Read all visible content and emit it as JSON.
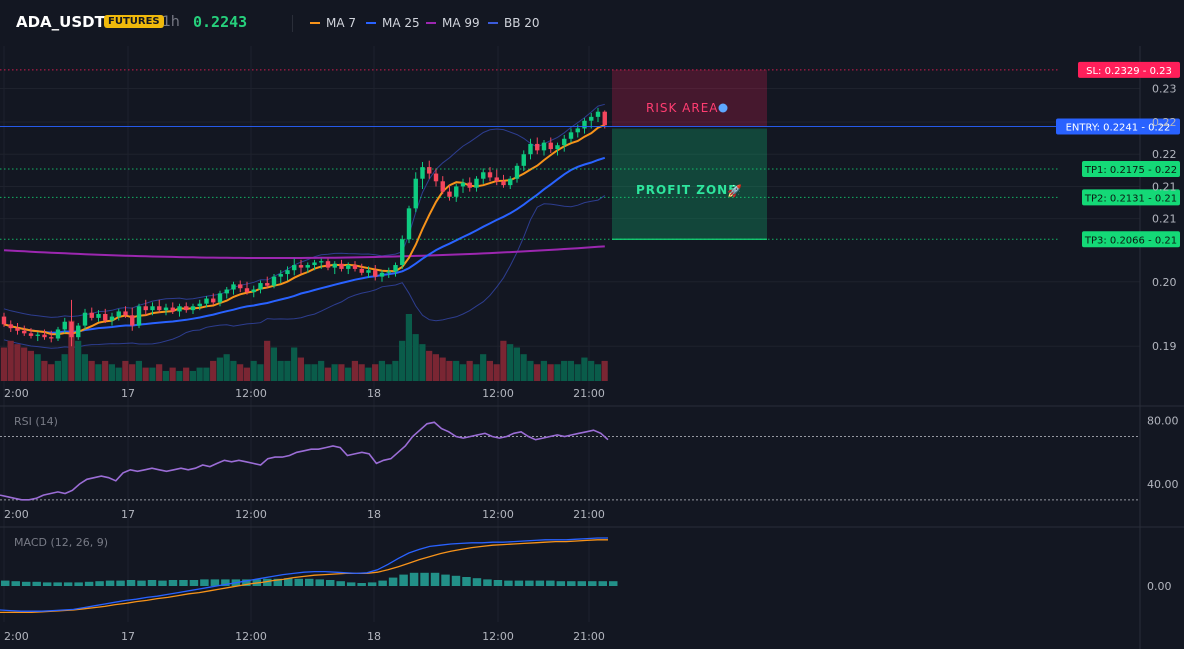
{
  "header": {
    "symbol": "ADA_USDT",
    "badge": "FUTURES",
    "timeframe": "1h",
    "price": "0.2243",
    "legend": [
      {
        "label": "MA 7",
        "color": "#f7931a"
      },
      {
        "label": "MA 25",
        "color": "#2962ff"
      },
      {
        "label": "MA 99",
        "color": "#9c27b0"
      },
      {
        "label": "BB 20",
        "color": "#3b5bdb"
      }
    ]
  },
  "colors": {
    "up": "#0ecb81",
    "down": "#f6465d",
    "risk": "#ff1f5a",
    "profit": "#14d977",
    "entry": "#2962ff"
  },
  "chart_data": [
    {
      "type": "candlestick",
      "ylim": [
        0.1846,
        0.2366
      ],
      "x_ticks": [
        "2:00",
        "17",
        "12:00",
        "18",
        "12:00",
        "21:00"
      ],
      "y_ticks": [
        "0.23",
        "0.22",
        "0.22",
        "0.21",
        "0.21",
        "0.20",
        "0.19"
      ],
      "y_tick_values": [
        0.23,
        0.2248,
        0.2198,
        0.2148,
        0.2098,
        0.2,
        0.19
      ],
      "ohlc": [
        [
          0.1946,
          0.1952,
          0.193,
          0.1934
        ],
        [
          0.1934,
          0.194,
          0.1922,
          0.1928
        ],
        [
          0.1928,
          0.1936,
          0.1918,
          0.1924
        ],
        [
          0.1924,
          0.1932,
          0.1916,
          0.192
        ],
        [
          0.192,
          0.1928,
          0.1912,
          0.1916
        ],
        [
          0.1916,
          0.1922,
          0.1908,
          0.1918
        ],
        [
          0.1918,
          0.1926,
          0.191,
          0.1914
        ],
        [
          0.1914,
          0.1924,
          0.1906,
          0.1912
        ],
        [
          0.1912,
          0.193,
          0.1908,
          0.1926
        ],
        [
          0.1926,
          0.1944,
          0.192,
          0.1938
        ],
        [
          0.1938,
          0.1972,
          0.19,
          0.1914
        ],
        [
          0.1914,
          0.1936,
          0.191,
          0.1932
        ],
        [
          0.1932,
          0.1958,
          0.1926,
          0.1952
        ],
        [
          0.1952,
          0.196,
          0.194,
          0.1944
        ],
        [
          0.1944,
          0.1956,
          0.1938,
          0.195
        ],
        [
          0.195,
          0.1958,
          0.1936,
          0.194
        ],
        [
          0.194,
          0.1952,
          0.1932,
          0.1946
        ],
        [
          0.1946,
          0.1958,
          0.194,
          0.1954
        ],
        [
          0.1954,
          0.1962,
          0.1944,
          0.1948
        ],
        [
          0.1948,
          0.196,
          0.1924,
          0.1932
        ],
        [
          0.1932,
          0.1966,
          0.1928,
          0.1962
        ],
        [
          0.1962,
          0.1972,
          0.1948,
          0.1956
        ],
        [
          0.1956,
          0.1968,
          0.1948,
          0.1962
        ],
        [
          0.1962,
          0.1972,
          0.1952,
          0.1956
        ],
        [
          0.1956,
          0.1966,
          0.1948,
          0.196
        ],
        [
          0.196,
          0.1968,
          0.195,
          0.1954
        ],
        [
          0.1954,
          0.1966,
          0.1946,
          0.1962
        ],
        [
          0.1962,
          0.1968,
          0.1952,
          0.1956
        ],
        [
          0.1956,
          0.1966,
          0.195,
          0.1962
        ],
        [
          0.1962,
          0.1972,
          0.1956,
          0.1966
        ],
        [
          0.1966,
          0.1978,
          0.196,
          0.1974
        ],
        [
          0.1974,
          0.1982,
          0.1964,
          0.1968
        ],
        [
          0.1968,
          0.1986,
          0.1962,
          0.1982
        ],
        [
          0.1982,
          0.1992,
          0.1974,
          0.1988
        ],
        [
          0.1988,
          0.2,
          0.198,
          0.1996
        ],
        [
          0.1996,
          0.2002,
          0.1984,
          0.199
        ],
        [
          0.199,
          0.2,
          0.198,
          0.1984
        ],
        [
          0.1984,
          0.1994,
          0.1976,
          0.1988
        ],
        [
          0.1988,
          0.2002,
          0.1982,
          0.1998
        ],
        [
          0.1998,
          0.2008,
          0.199,
          0.1994
        ],
        [
          0.1994,
          0.2012,
          0.199,
          0.2008
        ],
        [
          0.2008,
          0.2018,
          0.1998,
          0.2012
        ],
        [
          0.2012,
          0.2024,
          0.2002,
          0.2018
        ],
        [
          0.2018,
          0.2036,
          0.201,
          0.2026
        ],
        [
          0.2026,
          0.2034,
          0.2012,
          0.2022
        ],
        [
          0.2022,
          0.203,
          0.2014,
          0.2026
        ],
        [
          0.2026,
          0.2034,
          0.2018,
          0.203
        ],
        [
          0.203,
          0.2036,
          0.202,
          0.2032
        ],
        [
          0.2032,
          0.2036,
          0.2018,
          0.2022
        ],
        [
          0.2022,
          0.2032,
          0.2012,
          0.2028
        ],
        [
          0.2028,
          0.2034,
          0.2016,
          0.202
        ],
        [
          0.202,
          0.203,
          0.2012,
          0.2026
        ],
        [
          0.2026,
          0.2032,
          0.2016,
          0.202
        ],
        [
          0.202,
          0.2028,
          0.201,
          0.2014
        ],
        [
          0.2014,
          0.2024,
          0.2006,
          0.2018
        ],
        [
          0.2018,
          0.2026,
          0.2002,
          0.2008
        ],
        [
          0.2008,
          0.2018,
          0.2,
          0.2014
        ],
        [
          0.2014,
          0.2022,
          0.2006,
          0.2016
        ],
        [
          0.2016,
          0.203,
          0.2008,
          0.2026
        ],
        [
          0.2026,
          0.2072,
          0.202,
          0.2066
        ],
        [
          0.2066,
          0.2118,
          0.206,
          0.2114
        ],
        [
          0.2114,
          0.217,
          0.2108,
          0.216
        ],
        [
          0.216,
          0.2186,
          0.2144,
          0.2178
        ],
        [
          0.2178,
          0.2188,
          0.216,
          0.2168
        ],
        [
          0.2168,
          0.2176,
          0.2148,
          0.2156
        ],
        [
          0.2156,
          0.2164,
          0.2136,
          0.214
        ],
        [
          0.214,
          0.215,
          0.2126,
          0.2132
        ],
        [
          0.2132,
          0.2152,
          0.2124,
          0.2148
        ],
        [
          0.2148,
          0.216,
          0.2138,
          0.2154
        ],
        [
          0.2154,
          0.2162,
          0.214,
          0.2146
        ],
        [
          0.2146,
          0.2164,
          0.214,
          0.216
        ],
        [
          0.216,
          0.2176,
          0.2152,
          0.217
        ],
        [
          0.217,
          0.2178,
          0.2156,
          0.2162
        ],
        [
          0.2162,
          0.2174,
          0.215,
          0.2156
        ],
        [
          0.2156,
          0.2166,
          0.2146,
          0.215
        ],
        [
          0.215,
          0.2164,
          0.2144,
          0.216
        ],
        [
          0.216,
          0.2184,
          0.2154,
          0.218
        ],
        [
          0.218,
          0.2204,
          0.2172,
          0.2198
        ],
        [
          0.2198,
          0.2222,
          0.219,
          0.2214
        ],
        [
          0.2214,
          0.2224,
          0.2198,
          0.2204
        ],
        [
          0.2204,
          0.222,
          0.2196,
          0.2216
        ],
        [
          0.2216,
          0.2224,
          0.22,
          0.2206
        ],
        [
          0.2206,
          0.2216,
          0.2196,
          0.2212
        ],
        [
          0.2212,
          0.2228,
          0.2202,
          0.2222
        ],
        [
          0.2222,
          0.2238,
          0.2216,
          0.2232
        ],
        [
          0.2232,
          0.2244,
          0.2224,
          0.2238
        ],
        [
          0.2238,
          0.2254,
          0.223,
          0.225
        ],
        [
          0.225,
          0.2262,
          0.2238,
          0.2256
        ],
        [
          0.2256,
          0.227,
          0.2248,
          0.2264
        ],
        [
          0.2264,
          0.2266,
          0.2238,
          0.2243
        ]
      ],
      "volume": [
        0.5,
        0.6,
        0.55,
        0.5,
        0.45,
        0.4,
        0.3,
        0.25,
        0.3,
        0.4,
        0.9,
        0.6,
        0.4,
        0.3,
        0.25,
        0.3,
        0.25,
        0.2,
        0.3,
        0.25,
        0.3,
        0.2,
        0.2,
        0.25,
        0.15,
        0.2,
        0.15,
        0.2,
        0.15,
        0.2,
        0.2,
        0.3,
        0.35,
        0.4,
        0.3,
        0.25,
        0.2,
        0.3,
        0.25,
        0.6,
        0.5,
        0.3,
        0.3,
        0.5,
        0.35,
        0.25,
        0.25,
        0.3,
        0.2,
        0.25,
        0.25,
        0.2,
        0.3,
        0.25,
        0.2,
        0.25,
        0.3,
        0.25,
        0.3,
        0.6,
        1.0,
        0.7,
        0.55,
        0.45,
        0.4,
        0.35,
        0.3,
        0.3,
        0.25,
        0.3,
        0.25,
        0.4,
        0.3,
        0.25,
        0.6,
        0.55,
        0.5,
        0.4,
        0.3,
        0.25,
        0.3,
        0.25,
        0.25,
        0.3,
        0.3,
        0.25,
        0.35,
        0.3,
        0.25,
        0.3
      ],
      "levels": [
        {
          "label": "SL: 0.2329",
          "right": "0.23",
          "value": 0.2329,
          "kind": "risk"
        },
        {
          "label": "ENTRY: 0.2241",
          "right": "0.22",
          "value": 0.2241,
          "kind": "entry"
        },
        {
          "label": "TP1: 0.2175",
          "right": "0.22",
          "value": 0.2175,
          "kind": "profit"
        },
        {
          "label": "TP2: 0.2131",
          "right": "0.21",
          "value": 0.2131,
          "kind": "profit"
        },
        {
          "label": "TP3: 0.2066",
          "right": "0.21",
          "value": 0.2066,
          "kind": "profit"
        }
      ],
      "zones": {
        "risk_label": "RISK AREA",
        "profit_label": "PROFIT ZONE"
      }
    },
    {
      "type": "line",
      "title": "RSI (14)",
      "ylim": [
        28,
        88
      ],
      "y_ticks": [
        "80.00",
        "40.00"
      ],
      "y_tick_values": [
        80,
        40
      ],
      "guides": [
        70,
        30
      ],
      "values": [
        33,
        32,
        31,
        30,
        30,
        31,
        33,
        34,
        35,
        34,
        36,
        40,
        43,
        44,
        45,
        44,
        42,
        47,
        49,
        48,
        49,
        50,
        49,
        48,
        49,
        50,
        49,
        50,
        52,
        51,
        53,
        55,
        54,
        55,
        54,
        53,
        52,
        56,
        57,
        57,
        58,
        60,
        61,
        62,
        62,
        63,
        64,
        63,
        58,
        59,
        60,
        59,
        53,
        55,
        56,
        60,
        64,
        70,
        74,
        78,
        79,
        75,
        73,
        70,
        69,
        70,
        71,
        72,
        70,
        69,
        70,
        72,
        73,
        70,
        68,
        69,
        70,
        71,
        70,
        71,
        72,
        73,
        74,
        72,
        68
      ]
    },
    {
      "type": "line",
      "title": "MACD (12, 26, 9)",
      "y_ticks": [
        "0.00"
      ],
      "y_tick_values": [
        0
      ],
      "ylim": [
        -0.006,
        0.0095
      ],
      "macd": [
        -0.004,
        -0.0041,
        -0.0042,
        -0.0042,
        -0.0042,
        -0.0041,
        -0.004,
        -0.0039,
        -0.0036,
        -0.0033,
        -0.003,
        -0.0027,
        -0.0024,
        -0.0022,
        -0.0019,
        -0.0017,
        -0.0014,
        -0.0011,
        -0.0008,
        -0.0005,
        -0.0002,
        0.0001,
        0.0004,
        0.0007,
        0.001,
        0.0013,
        0.0016,
        0.0019,
        0.0021,
        0.0023,
        0.0024,
        0.0024,
        0.0023,
        0.0022,
        0.0021,
        0.0022,
        0.0027,
        0.0036,
        0.0046,
        0.0055,
        0.0061,
        0.0066,
        0.0068,
        0.007,
        0.0071,
        0.0072,
        0.0072,
        0.0073,
        0.0073,
        0.0074,
        0.0075,
        0.0076,
        0.0077,
        0.0077,
        0.0077,
        0.0078,
        0.0079,
        0.008,
        0.008
      ],
      "signal": [
        -0.0044,
        -0.0044,
        -0.0044,
        -0.0044,
        -0.0043,
        -0.0042,
        -0.0041,
        -0.004,
        -0.0038,
        -0.0036,
        -0.0034,
        -0.0031,
        -0.0029,
        -0.0026,
        -0.0024,
        -0.0021,
        -0.0019,
        -0.0016,
        -0.0013,
        -0.0011,
        -0.0008,
        -0.0005,
        -0.0002,
        0.0001,
        0.0004,
        0.0006,
        0.0009,
        0.0011,
        0.0014,
        0.0016,
        0.0018,
        0.0019,
        0.002,
        0.0021,
        0.0021,
        0.0021,
        0.0023,
        0.0027,
        0.0032,
        0.0038,
        0.0044,
        0.0049,
        0.0054,
        0.0058,
        0.0061,
        0.0064,
        0.0066,
        0.0068,
        0.0069,
        0.007,
        0.0071,
        0.0072,
        0.0073,
        0.0074,
        0.0074,
        0.0075,
        0.0076,
        0.0077,
        0.0077
      ]
    }
  ]
}
